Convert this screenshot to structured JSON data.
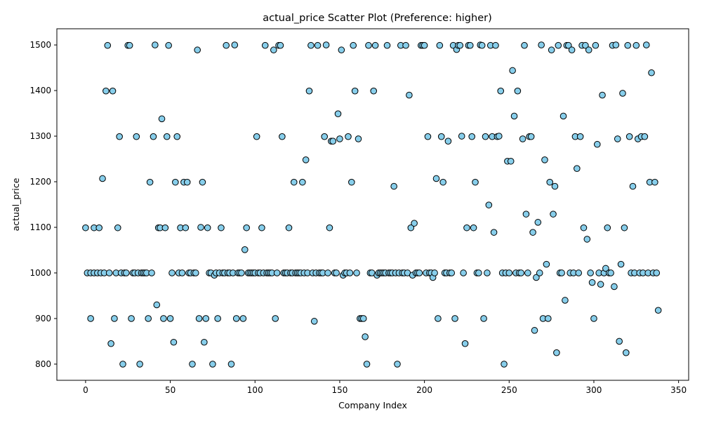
{
  "chart_data": {
    "type": "scatter",
    "title": "actual_price Scatter Plot (Preference: higher)",
    "xlabel": "Company Index",
    "ylabel": "actual_price",
    "xlim": [
      -16.95,
      355.95
    ],
    "ylim": [
      764.5,
      1535.5
    ],
    "xticks": [
      0,
      50,
      100,
      150,
      200,
      250,
      300,
      350
    ],
    "yticks": [
      800,
      900,
      1000,
      1100,
      1200,
      1300,
      1400,
      1500
    ],
    "grid": false,
    "legend": "none",
    "marker_color": "#87ceeb",
    "marker_edge_color": "#000000",
    "points": [
      [
        0,
        1099
      ],
      [
        1,
        1000
      ],
      [
        3,
        900
      ],
      [
        3,
        1000
      ],
      [
        5,
        1000
      ],
      [
        5,
        1099
      ],
      [
        7,
        1000
      ],
      [
        8,
        1099
      ],
      [
        9,
        1000
      ],
      [
        10,
        1207
      ],
      [
        11,
        1000
      ],
      [
        12,
        1399
      ],
      [
        13,
        1499
      ],
      [
        14,
        1000
      ],
      [
        15,
        845
      ],
      [
        16,
        1399
      ],
      [
        17,
        900
      ],
      [
        18,
        1000
      ],
      [
        19,
        1099
      ],
      [
        20,
        1299
      ],
      [
        21,
        1000
      ],
      [
        22,
        800
      ],
      [
        23,
        1000
      ],
      [
        24,
        1000
      ],
      [
        25,
        1499
      ],
      [
        26,
        1499
      ],
      [
        27,
        900
      ],
      [
        28,
        1000
      ],
      [
        29,
        1000
      ],
      [
        30,
        1299
      ],
      [
        31,
        1000
      ],
      [
        32,
        800
      ],
      [
        33,
        1000
      ],
      [
        34,
        1000
      ],
      [
        35,
        1000
      ],
      [
        36,
        1000
      ],
      [
        37,
        900
      ],
      [
        38,
        1199
      ],
      [
        39,
        1000
      ],
      [
        40,
        1299
      ],
      [
        41,
        1500
      ],
      [
        42,
        930
      ],
      [
        43,
        1099
      ],
      [
        44,
        1099
      ],
      [
        45,
        1338
      ],
      [
        46,
        900
      ],
      [
        47,
        1099
      ],
      [
        48,
        1299
      ],
      [
        49,
        1499
      ],
      [
        50,
        900
      ],
      [
        51,
        1000
      ],
      [
        52,
        848
      ],
      [
        53,
        1199
      ],
      [
        54,
        1299
      ],
      [
        55,
        1000
      ],
      [
        56,
        1099
      ],
      [
        57,
        1000
      ],
      [
        58,
        1199
      ],
      [
        59,
        1099
      ],
      [
        60,
        1199
      ],
      [
        61,
        1000
      ],
      [
        62,
        1000
      ],
      [
        63,
        800
      ],
      [
        64,
        1000
      ],
      [
        65,
        1000
      ],
      [
        66,
        1489
      ],
      [
        67,
        900
      ],
      [
        68,
        1100
      ],
      [
        69,
        1199
      ],
      [
        70,
        848
      ],
      [
        71,
        900
      ],
      [
        72,
        1099
      ],
      [
        73,
        1000
      ],
      [
        74,
        1000
      ],
      [
        75,
        800
      ],
      [
        76,
        995
      ],
      [
        77,
        1000
      ],
      [
        78,
        900
      ],
      [
        79,
        1000
      ],
      [
        80,
        1099
      ],
      [
        81,
        1000
      ],
      [
        82,
        1000
      ],
      [
        83,
        1499
      ],
      [
        84,
        1000
      ],
      [
        85,
        1000
      ],
      [
        86,
        800
      ],
      [
        87,
        1000
      ],
      [
        88,
        1500
      ],
      [
        89,
        900
      ],
      [
        90,
        1000
      ],
      [
        91,
        1000
      ],
      [
        92,
        1000
      ],
      [
        93,
        900
      ],
      [
        94,
        1051
      ],
      [
        95,
        1099
      ],
      [
        96,
        1000
      ],
      [
        97,
        1000
      ],
      [
        98,
        1000
      ],
      [
        99,
        1000
      ],
      [
        100,
        1000
      ],
      [
        101,
        1299
      ],
      [
        102,
        1000
      ],
      [
        103,
        1000
      ],
      [
        104,
        1099
      ],
      [
        105,
        1000
      ],
      [
        106,
        1499
      ],
      [
        107,
        1000
      ],
      [
        108,
        1000
      ],
      [
        109,
        1000
      ],
      [
        110,
        1000
      ],
      [
        111,
        1489
      ],
      [
        112,
        900
      ],
      [
        113,
        1000
      ],
      [
        114,
        1499
      ],
      [
        115,
        1499
      ],
      [
        116,
        1299
      ],
      [
        117,
        1000
      ],
      [
        118,
        1000
      ],
      [
        119,
        1000
      ],
      [
        120,
        1099
      ],
      [
        121,
        1000
      ],
      [
        122,
        1000
      ],
      [
        123,
        1199
      ],
      [
        124,
        1000
      ],
      [
        125,
        1000
      ],
      [
        126,
        1000
      ],
      [
        127,
        1000
      ],
      [
        128,
        1199
      ],
      [
        129,
        1000
      ],
      [
        130,
        1248
      ],
      [
        131,
        1000
      ],
      [
        132,
        1399
      ],
      [
        133,
        1499
      ],
      [
        134,
        1000
      ],
      [
        135,
        894
      ],
      [
        136,
        1000
      ],
      [
        137,
        1499
      ],
      [
        138,
        1000
      ],
      [
        139,
        1000
      ],
      [
        140,
        1000
      ],
      [
        141,
        1299
      ],
      [
        142,
        1500
      ],
      [
        143,
        1000
      ],
      [
        144,
        1099
      ],
      [
        145,
        1289
      ],
      [
        146,
        1289
      ],
      [
        147,
        1000
      ],
      [
        148,
        1000
      ],
      [
        149,
        1349
      ],
      [
        150,
        1294
      ],
      [
        151,
        1489
      ],
      [
        152,
        995
      ],
      [
        153,
        1000
      ],
      [
        154,
        1000
      ],
      [
        155,
        1299
      ],
      [
        156,
        1000
      ],
      [
        157,
        1199
      ],
      [
        158,
        1499
      ],
      [
        159,
        1399
      ],
      [
        160,
        1000
      ],
      [
        161,
        1294
      ],
      [
        162,
        900
      ],
      [
        163,
        900
      ],
      [
        164,
        900
      ],
      [
        165,
        860
      ],
      [
        166,
        800
      ],
      [
        167,
        1499
      ],
      [
        168,
        1000
      ],
      [
        169,
        1000
      ],
      [
        170,
        1399
      ],
      [
        171,
        1499
      ],
      [
        172,
        995
      ],
      [
        173,
        1000
      ],
      [
        174,
        1000
      ],
      [
        175,
        1000
      ],
      [
        176,
        1000
      ],
      [
        177,
        1000
      ],
      [
        178,
        1499
      ],
      [
        179,
        1000
      ],
      [
        180,
        1000
      ],
      [
        181,
        1000
      ],
      [
        182,
        1190
      ],
      [
        183,
        1000
      ],
      [
        184,
        800
      ],
      [
        185,
        1000
      ],
      [
        186,
        1499
      ],
      [
        187,
        1000
      ],
      [
        188,
        1000
      ],
      [
        189,
        1499
      ],
      [
        190,
        1000
      ],
      [
        191,
        1390
      ],
      [
        192,
        1099
      ],
      [
        193,
        995
      ],
      [
        194,
        1109
      ],
      [
        195,
        1000
      ],
      [
        196,
        1000
      ],
      [
        197,
        1000
      ],
      [
        198,
        1499
      ],
      [
        199,
        1499
      ],
      [
        200,
        1499
      ],
      [
        201,
        1000
      ],
      [
        202,
        1299
      ],
      [
        203,
        1000
      ],
      [
        204,
        1000
      ],
      [
        205,
        990
      ],
      [
        206,
        1000
      ],
      [
        207,
        1207
      ],
      [
        208,
        900
      ],
      [
        209,
        1499
      ],
      [
        210,
        1299
      ],
      [
        211,
        1199
      ],
      [
        212,
        1000
      ],
      [
        213,
        1000
      ],
      [
        214,
        1289
      ],
      [
        215,
        1000
      ],
      [
        216,
        1000
      ],
      [
        217,
        1499
      ],
      [
        218,
        900
      ],
      [
        219,
        1490
      ],
      [
        220,
        1499
      ],
      [
        221,
        1499
      ],
      [
        222,
        1300
      ],
      [
        223,
        1000
      ],
      [
        224,
        845
      ],
      [
        225,
        1099
      ],
      [
        226,
        1499
      ],
      [
        227,
        1499
      ],
      [
        228,
        1299
      ],
      [
        229,
        1099
      ],
      [
        230,
        1199
      ],
      [
        231,
        1000
      ],
      [
        232,
        1000
      ],
      [
        233,
        1500
      ],
      [
        234,
        1499
      ],
      [
        235,
        900
      ],
      [
        236,
        1299
      ],
      [
        237,
        1000
      ],
      [
        238,
        1149
      ],
      [
        239,
        1499
      ],
      [
        240,
        1299
      ],
      [
        241,
        1089
      ],
      [
        242,
        1499
      ],
      [
        243,
        1299
      ],
      [
        244,
        1300
      ],
      [
        245,
        1399
      ],
      [
        246,
        1000
      ],
      [
        247,
        800
      ],
      [
        248,
        1000
      ],
      [
        249,
        1245
      ],
      [
        250,
        1000
      ],
      [
        251,
        1245
      ],
      [
        252,
        1444
      ],
      [
        253,
        1344
      ],
      [
        254,
        1000
      ],
      [
        255,
        1399
      ],
      [
        256,
        1000
      ],
      [
        257,
        1000
      ],
      [
        258,
        1294
      ],
      [
        259,
        1499
      ],
      [
        260,
        1129
      ],
      [
        261,
        1000
      ],
      [
        262,
        1299
      ],
      [
        263,
        1299
      ],
      [
        264,
        1089
      ],
      [
        265,
        874
      ],
      [
        266,
        990
      ],
      [
        267,
        1111
      ],
      [
        268,
        1000
      ],
      [
        269,
        1500
      ],
      [
        270,
        900
      ],
      [
        271,
        1248
      ],
      [
        272,
        1019
      ],
      [
        273,
        900
      ],
      [
        274,
        1199
      ],
      [
        275,
        1489
      ],
      [
        276,
        1129
      ],
      [
        277,
        1190
      ],
      [
        278,
        825
      ],
      [
        279,
        1499
      ],
      [
        280,
        1000
      ],
      [
        281,
        1000
      ],
      [
        282,
        1344
      ],
      [
        283,
        940
      ],
      [
        284,
        1499
      ],
      [
        285,
        1499
      ],
      [
        286,
        1000
      ],
      [
        287,
        1489
      ],
      [
        288,
        1000
      ],
      [
        289,
        1299
      ],
      [
        290,
        1229
      ],
      [
        291,
        1000
      ],
      [
        292,
        1299
      ],
      [
        293,
        1499
      ],
      [
        294,
        1099
      ],
      [
        295,
        1499
      ],
      [
        296,
        1074
      ],
      [
        297,
        1489
      ],
      [
        298,
        1000
      ],
      [
        299,
        979
      ],
      [
        300,
        900
      ],
      [
        301,
        1499
      ],
      [
        302,
        1282
      ],
      [
        303,
        1000
      ],
      [
        304,
        975
      ],
      [
        305,
        1390
      ],
      [
        306,
        1000
      ],
      [
        307,
        1010
      ],
      [
        308,
        1099
      ],
      [
        309,
        1000
      ],
      [
        310,
        1000
      ],
      [
        311,
        1499
      ],
      [
        312,
        970
      ],
      [
        313,
        1500
      ],
      [
        314,
        1294
      ],
      [
        315,
        850
      ],
      [
        316,
        1019
      ],
      [
        317,
        1394
      ],
      [
        318,
        1099
      ],
      [
        319,
        825
      ],
      [
        320,
        1499
      ],
      [
        321,
        1299
      ],
      [
        322,
        1000
      ],
      [
        323,
        1190
      ],
      [
        324,
        1000
      ],
      [
        325,
        1499
      ],
      [
        326,
        1294
      ],
      [
        327,
        1000
      ],
      [
        328,
        1299
      ],
      [
        329,
        1000
      ],
      [
        330,
        1299
      ],
      [
        331,
        1500
      ],
      [
        332,
        1000
      ],
      [
        333,
        1199
      ],
      [
        334,
        1439
      ],
      [
        335,
        1000
      ],
      [
        336,
        1199
      ],
      [
        337,
        1000
      ],
      [
        338,
        918
      ]
    ]
  }
}
